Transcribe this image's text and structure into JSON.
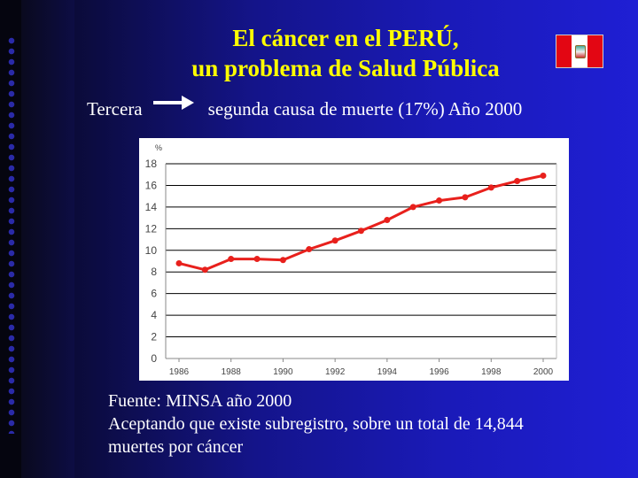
{
  "slide": {
    "title_line1": "El cáncer en el PERÚ,",
    "title_line2": "un problema de Salud Pública",
    "subtitle_left": "Tercera",
    "subtitle_right": "segunda causa de muerte (17%) Año 2000",
    "footer_line1": "Fuente: MINSA año 2000",
    "footer_line2": "Aceptando que existe subregistro, sobre un total de 14,844",
    "footer_line3": "muertes por cáncer",
    "title_color": "#ffff00",
    "text_color": "#ffffff",
    "flag_icon": "peru-flag-icon",
    "arrow_icon": "right-arrow-icon"
  },
  "chart_data": {
    "type": "line",
    "ylabel": "%",
    "xlabel": "",
    "ylim": [
      0,
      18
    ],
    "yticks": [
      0,
      2,
      4,
      6,
      8,
      10,
      12,
      14,
      16,
      18
    ],
    "xticks": [
      1986,
      1988,
      1990,
      1992,
      1994,
      1996,
      1998,
      2000
    ],
    "x": [
      1986,
      1987,
      1988,
      1989,
      1990,
      1991,
      1992,
      1993,
      1994,
      1995,
      1996,
      1997,
      1998,
      1999,
      2000
    ],
    "y": [
      8.8,
      8.2,
      9.2,
      9.2,
      9.1,
      10.1,
      10.9,
      11.8,
      12.8,
      14.0,
      14.6,
      14.9,
      15.8,
      16.4,
      16.9
    ],
    "grid": "horizontal",
    "line_color": "#e8201c",
    "legend": "none"
  }
}
